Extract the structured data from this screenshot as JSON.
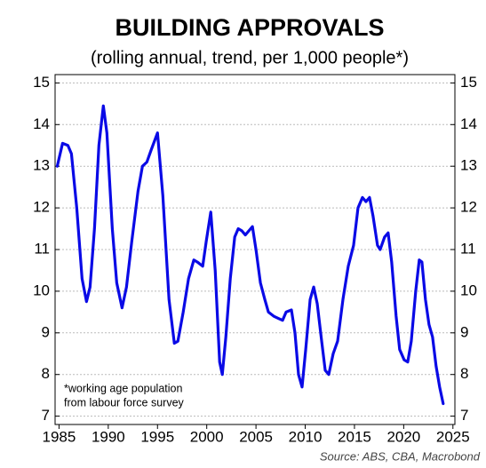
{
  "chart_data": {
    "type": "line",
    "title": "BUILDING APPROVALS",
    "subtitle": "(rolling annual, trend, per 1,000 people*)",
    "note": [
      "*working age population",
      "from labour force survey"
    ],
    "source": "Source: ABS, CBA, Macrobond",
    "x": [
      1984.82,
      1985.36,
      1985.9,
      1986.26,
      1986.8,
      1987.34,
      1987.79,
      1988.15,
      1988.6,
      1989.05,
      1989.5,
      1989.86,
      1990.41,
      1990.86,
      1991.4,
      1991.85,
      1992.39,
      1993.02,
      1993.47,
      1993.92,
      1994.37,
      1995.0,
      1995.54,
      1996.17,
      1996.71,
      1997.07,
      1997.61,
      1998.15,
      1998.69,
      1999.05,
      1999.59,
      1999.95,
      2000.41,
      2000.86,
      2001.31,
      2001.58,
      2001.94,
      2002.39,
      2002.84,
      2003.2,
      2003.56,
      2003.92,
      2004.28,
      2004.64,
      2005.0,
      2005.45,
      2005.9,
      2006.26,
      2006.8,
      2007.25,
      2007.7,
      2008.06,
      2008.6,
      2008.96,
      2009.32,
      2009.68,
      2010.05,
      2010.5,
      2010.86,
      2011.22,
      2011.67,
      2012.03,
      2012.39,
      2012.84,
      2013.29,
      2013.83,
      2014.37,
      2014.91,
      2015.36,
      2015.81,
      2016.17,
      2016.53,
      2016.89,
      2017.34,
      2017.61,
      2018.06,
      2018.42,
      2018.78,
      2019.23,
      2019.59,
      2020.05,
      2020.41,
      2020.77,
      2021.22,
      2021.58,
      2021.85,
      2022.21,
      2022.57,
      2022.93,
      2023.29,
      2023.65,
      2024.01
    ],
    "series": [
      {
        "name": "Building approvals",
        "color": "#0a0ae6",
        "values": [
          13.0,
          13.55,
          13.5,
          13.3,
          12.0,
          10.3,
          9.75,
          10.1,
          11.5,
          13.5,
          14.45,
          13.8,
          11.5,
          10.2,
          9.6,
          10.1,
          11.2,
          12.4,
          13.0,
          13.1,
          13.4,
          13.8,
          12.3,
          9.8,
          8.75,
          8.8,
          9.5,
          10.3,
          10.75,
          10.7,
          10.6,
          11.2,
          11.9,
          10.5,
          8.3,
          8.0,
          8.9,
          10.3,
          11.3,
          11.5,
          11.45,
          11.35,
          11.45,
          11.55,
          11.0,
          10.2,
          9.8,
          9.5,
          9.4,
          9.35,
          9.3,
          9.5,
          9.55,
          9.0,
          8.0,
          7.7,
          8.6,
          9.8,
          10.1,
          9.7,
          8.8,
          8.1,
          8.0,
          8.5,
          8.8,
          9.8,
          10.6,
          11.1,
          12.0,
          12.25,
          12.15,
          12.25,
          11.8,
          11.1,
          11.0,
          11.3,
          11.4,
          10.7,
          9.4,
          8.6,
          8.35,
          8.3,
          8.8,
          10.0,
          10.75,
          10.7,
          9.8,
          9.2,
          8.9,
          8.2,
          7.7,
          7.3
        ]
      }
    ],
    "xlim": [
      1984.6,
      2025.2
    ],
    "xticks": [
      1985,
      1990,
      1995,
      2000,
      2005,
      2010,
      2015,
      2020,
      2025
    ],
    "ylim": [
      6.8,
      15.2
    ],
    "yticks": [
      7,
      8,
      9,
      10,
      11,
      12,
      13,
      14,
      15
    ],
    "y2lim": [
      6.8,
      15.2
    ],
    "y2ticks": [
      7,
      8,
      9,
      10,
      11,
      12,
      13,
      14,
      15
    ],
    "grid": true
  }
}
